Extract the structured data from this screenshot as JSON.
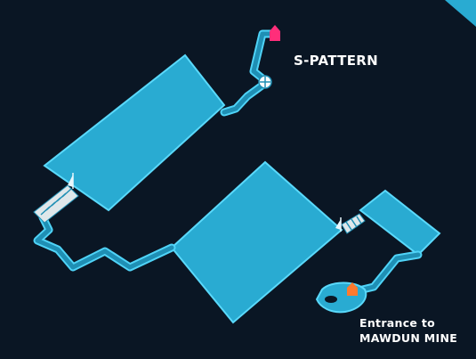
{
  "map": {
    "labels": {
      "s_pattern": "S-PATTERN",
      "entrance_line1": "Entrance to",
      "entrance_line2": "MAWDUN MINE"
    },
    "icons": [
      "pink-pin-icon",
      "orange-pin-icon",
      "boat-icon",
      "bonfire-icon"
    ],
    "colors": {
      "background": "#0a1624",
      "floor": "#29abd2",
      "outline": "#4fd3f7",
      "pin_pink": "#ff2e7a",
      "pin_orange": "#ff7a2e"
    }
  }
}
